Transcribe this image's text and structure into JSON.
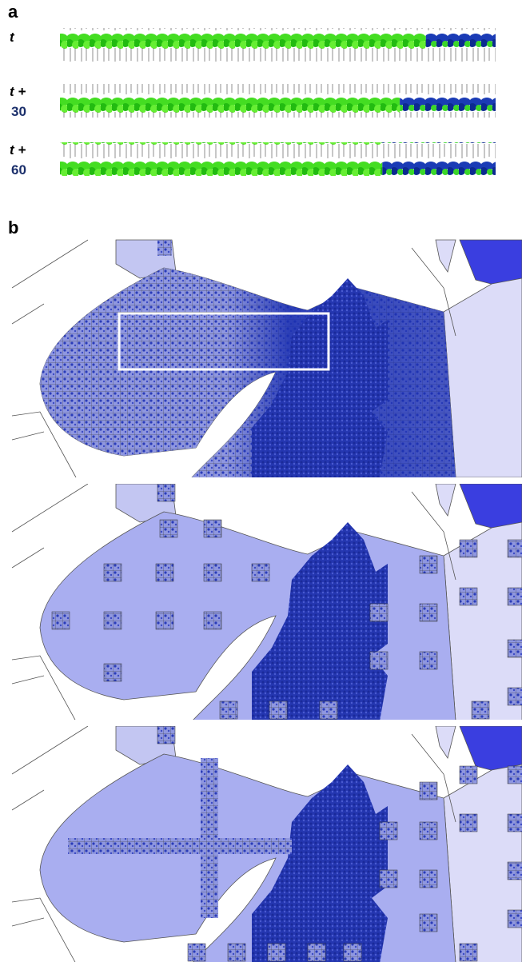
{
  "panel_a": {
    "label": "a",
    "rows": [
      {
        "label": "t"
      },
      {
        "label": "t +",
        "step": "30"
      },
      {
        "label": "t +",
        "step": "60"
      }
    ]
  },
  "panel_b": {
    "label": "b"
  }
}
